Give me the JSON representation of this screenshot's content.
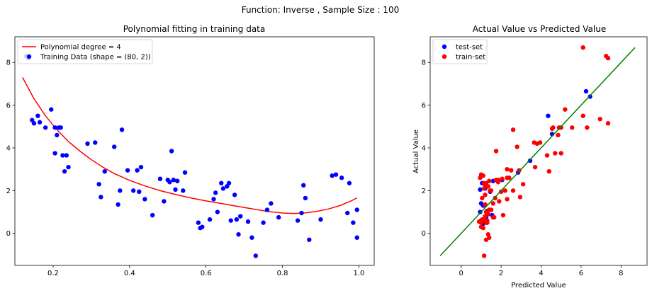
{
  "figure": {
    "suptitle": "Function: Inverse , Sample Size : 100"
  },
  "chart_data": [
    {
      "type": "scatter",
      "title": "Polynomial fitting in training data",
      "xlabel": "",
      "ylabel": "",
      "xlim": [
        0.1,
        1.04
      ],
      "ylim": [
        -1.5,
        9.2
      ],
      "xticks": [
        0.2,
        0.4,
        0.6,
        0.8,
        1.0
      ],
      "xtick_labels": [
        "0.2",
        "0.4",
        "0.6",
        "0.8",
        "1.0"
      ],
      "yticks": [
        0,
        2,
        4,
        6,
        8
      ],
      "ytick_labels": [
        "0",
        "2",
        "4",
        "6",
        "8"
      ],
      "legend": "top-left",
      "grid": false,
      "series": [
        {
          "name": "Polynomial degree = 4",
          "kind": "line",
          "color": "#ff0000",
          "x": [
            0.12,
            0.15,
            0.18,
            0.21,
            0.24,
            0.27,
            0.3,
            0.33,
            0.36,
            0.4,
            0.44,
            0.48,
            0.52,
            0.56,
            0.6,
            0.64,
            0.68,
            0.72,
            0.76,
            0.8,
            0.83,
            0.86,
            0.89,
            0.92,
            0.95,
            0.98,
            0.995
          ],
          "y": [
            7.3,
            6.3,
            5.5,
            4.85,
            4.3,
            3.85,
            3.45,
            3.1,
            2.8,
            2.48,
            2.22,
            2.0,
            1.82,
            1.66,
            1.52,
            1.4,
            1.27,
            1.15,
            1.03,
            0.95,
            0.93,
            0.96,
            1.03,
            1.14,
            1.3,
            1.52,
            1.66
          ]
        },
        {
          "name": "Training Data (shape = (80, 2))",
          "kind": "scatter",
          "color": "#0000ff",
          "x": [
            0.13,
            0.145,
            0.15,
            0.16,
            0.18,
            0.195,
            0.205,
            0.21,
            0.215,
            0.22,
            0.205,
            0.225,
            0.23,
            0.235,
            0.24,
            0.29,
            0.31,
            0.32,
            0.325,
            0.335,
            0.36,
            0.37,
            0.375,
            0.38,
            0.395,
            0.41,
            0.42,
            0.425,
            0.43,
            0.44,
            0.46,
            0.48,
            0.49,
            0.5,
            0.505,
            0.51,
            0.515,
            0.52,
            0.525,
            0.54,
            0.545,
            0.58,
            0.585,
            0.59,
            0.61,
            0.62,
            0.625,
            0.63,
            0.64,
            0.645,
            0.655,
            0.66,
            0.665,
            0.675,
            0.68,
            0.685,
            0.69,
            0.71,
            0.72,
            0.73,
            0.75,
            0.76,
            0.77,
            0.79,
            0.84,
            0.85,
            0.855,
            0.86,
            0.87,
            0.9,
            0.93,
            0.94,
            0.955,
            0.97,
            0.975,
            0.985,
            0.995,
            0.995,
            0.135,
            0.165
          ],
          "y": [
            8.3,
            5.3,
            5.15,
            5.5,
            4.95,
            5.8,
            4.95,
            4.6,
            4.95,
            4.95,
            3.75,
            3.65,
            2.9,
            3.65,
            3.1,
            4.2,
            4.25,
            2.3,
            1.7,
            2.9,
            4.05,
            1.35,
            2.0,
            4.85,
            2.95,
            2.0,
            2.95,
            1.95,
            3.1,
            1.6,
            0.85,
            2.55,
            1.5,
            2.5,
            2.4,
            3.85,
            2.5,
            2.05,
            2.45,
            2.0,
            2.85,
            0.5,
            0.25,
            0.3,
            0.65,
            1.6,
            1.9,
            1.0,
            2.35,
            2.1,
            2.2,
            2.35,
            0.6,
            1.8,
            0.65,
            -0.05,
            0.8,
            0.55,
            -0.2,
            -1.05,
            0.5,
            1.1,
            1.4,
            0.75,
            0.6,
            0.95,
            2.25,
            1.65,
            -0.3,
            0.65,
            2.7,
            2.75,
            2.6,
            0.95,
            2.35,
            0.5,
            1.1,
            -0.2,
            8.2,
            5.2
          ]
        }
      ]
    },
    {
      "type": "scatter",
      "title": "Actual Value vs Predicted Value",
      "xlabel": "Predicted Value",
      "ylabel": "Actual Value",
      "xlim": [
        -1.55,
        9.3
      ],
      "ylim": [
        -1.5,
        9.2
      ],
      "xticks": [
        0,
        2,
        4,
        6,
        8
      ],
      "xtick_labels": [
        "0",
        "2",
        "4",
        "6",
        "8"
      ],
      "yticks": [
        0,
        2,
        4,
        6,
        8
      ],
      "ytick_labels": [
        "0",
        "2",
        "4",
        "6",
        "8"
      ],
      "legend": "top-left",
      "grid": false,
      "series": [
        {
          "name": "test-set",
          "kind": "scatter",
          "color": "#0000ff",
          "x": [
            6.25,
            6.45,
            4.35,
            4.55,
            3.45,
            2.85,
            2.05,
            1.6,
            1.45,
            1.2,
            1.05,
            0.95,
            1.0,
            1.1,
            1.3,
            1.55,
            1.25,
            1.0,
            0.95,
            1.1
          ],
          "y": [
            6.65,
            6.4,
            5.5,
            4.65,
            3.4,
            2.85,
            2.5,
            2.45,
            1.95,
            2.1,
            2.35,
            2.05,
            1.4,
            1.3,
            1.05,
            0.85,
            0.75,
            0.6,
            1.0,
            0.45
          ]
        },
        {
          "name": "train-set",
          "kind": "scatter",
          "color": "#ff0000",
          "x": [
            6.1,
            7.25,
            7.35,
            6.1,
            6.95,
            7.35,
            6.3,
            5.2,
            5.0,
            4.9,
            4.6,
            4.55,
            4.85,
            4.7,
            5.0,
            5.55,
            4.3,
            4.4,
            3.95,
            3.65,
            3.8,
            3.7,
            2.8,
            2.6,
            2.9,
            3.1,
            2.95,
            2.5,
            2.4,
            2.3,
            2.3,
            2.6,
            2.2,
            2.0,
            1.85,
            1.9,
            1.75,
            1.7,
            2.05,
            2.3,
            2.1,
            1.85,
            1.75,
            1.5,
            1.4,
            1.35,
            1.25,
            1.2,
            1.15,
            1.2,
            1.25,
            1.3,
            1.1,
            1.05,
            1.0,
            0.9,
            1.0,
            1.1,
            1.15,
            1.2,
            1.3,
            1.4,
            1.5,
            1.6,
            1.65,
            1.3,
            1.35,
            1.2,
            1.1,
            1.0,
            0.95,
            1.05,
            1.15,
            1.25,
            1.4,
            1.6,
            1.45,
            1.25,
            1.35,
            1.15
          ],
          "y": [
            8.7,
            8.3,
            8.2,
            5.5,
            5.35,
            5.15,
            4.95,
            5.8,
            4.95,
            4.95,
            4.95,
            4.9,
            4.6,
            3.75,
            3.75,
            4.95,
            3.65,
            2.9,
            4.25,
            4.25,
            4.2,
            3.1,
            4.05,
            4.85,
            2.95,
            2.3,
            1.7,
            2.95,
            2.6,
            2.6,
            1.6,
            2.0,
            2.0,
            1.95,
            2.4,
            1.5,
            2.5,
            1.65,
            2.55,
            3.0,
            0.85,
            2.5,
            3.85,
            2.0,
            2.45,
            2.2,
            2.35,
            1.8,
            2.1,
            1.35,
            1.0,
            0.95,
            0.6,
            0.65,
            0.5,
            0.55,
            0.3,
            0.25,
            0.65,
            0.8,
            0.5,
            -0.2,
            1.1,
            1.4,
            0.75,
            0.6,
            -0.05,
            2.25,
            2.7,
            2.75,
            2.6,
            1.65,
            2.35,
            0.5,
            1.1,
            0.75,
            2.0,
            -0.3,
            0.9,
            -1.05
          ]
        },
        {
          "name": "",
          "kind": "line",
          "color": "#008000",
          "x": [
            -1.05,
            8.7
          ],
          "y": [
            -1.05,
            8.7
          ]
        }
      ]
    }
  ]
}
